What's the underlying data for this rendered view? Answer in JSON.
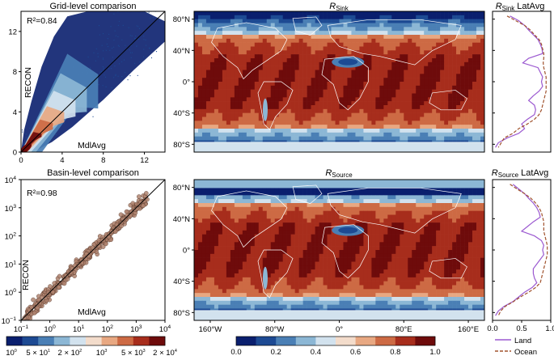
{
  "chart_data": [
    {
      "type": "scatter",
      "title": "Grid-level comparison",
      "xlabel": "MdlAvg",
      "ylabel": "RECON",
      "annotation": "R²=0.84",
      "xlim": [
        0,
        14
      ],
      "ylim": [
        0,
        14
      ],
      "xticks": [
        "0",
        "4",
        "8",
        "12"
      ],
      "yticks": [
        "0",
        "4",
        "8",
        "12"
      ],
      "reference_line": "1:1",
      "points_note": "dense cloud, colored by point density"
    },
    {
      "type": "scatter",
      "title": "Basin-level comparison",
      "xlabel": "MdlAvg",
      "ylabel": "RECON",
      "annotation": "R²=0.98",
      "scale": "log",
      "xlim": [
        0.1,
        10000
      ],
      "ylim": [
        0.1,
        10000
      ],
      "tick_bases": [
        "10",
        "10",
        "10",
        "10",
        "10",
        "10"
      ],
      "tick_exponents": [
        "−1",
        "0",
        "1",
        "2",
        "3",
        "4"
      ],
      "reference_line": "1:1"
    },
    {
      "type": "heatmap",
      "title_main": "R",
      "title_sub": "Sink",
      "x_ticks": [
        "160°W",
        "80°W",
        "0°",
        "80°E",
        "160°E"
      ],
      "y_ticks": [
        "80°N",
        "40°N",
        "0°",
        "40°S",
        "80°S"
      ],
      "colorscale": [
        0,
        1
      ]
    },
    {
      "type": "heatmap",
      "title_main": "R",
      "title_sub": "Source",
      "x_ticks": [
        "160°W",
        "80°W",
        "0°",
        "80°E",
        "160°E"
      ],
      "y_ticks": [
        "80°N",
        "40°N",
        "0°",
        "40°S",
        "80°S"
      ],
      "colorscale": [
        0,
        1
      ]
    },
    {
      "type": "line",
      "title_main": "R",
      "title_sub": "Sink",
      "title_tail": " LatAvg",
      "xlim": [
        0,
        1
      ],
      "ylim": [
        -90,
        90
      ],
      "series": [
        {
          "name": "Land",
          "color": "#9b59d0",
          "lat": [
            84,
            78,
            72,
            66,
            60,
            54,
            48,
            42,
            36,
            30,
            24,
            18,
            12,
            6,
            0,
            -6,
            -12,
            -18,
            -24,
            -30,
            -36,
            -42,
            -48,
            -54,
            -60,
            -66,
            -72,
            -78,
            -84
          ],
          "values": [
            0.3,
            0.45,
            0.55,
            0.62,
            0.7,
            0.78,
            0.82,
            0.85,
            0.86,
            0.62,
            0.52,
            0.78,
            0.82,
            0.86,
            0.84,
            0.86,
            0.8,
            0.7,
            0.62,
            0.72,
            0.74,
            0.72,
            0.6,
            0.5,
            0.55,
            0.45,
            0.25,
            0.1,
            0.05
          ]
        },
        {
          "name": "Ocean",
          "color": "#a0522d",
          "lat": [
            84,
            78,
            72,
            66,
            60,
            54,
            48,
            42,
            36,
            30,
            24,
            18,
            12,
            6,
            0,
            -6,
            -12,
            -18,
            -24,
            -30,
            -36,
            -42,
            -48,
            -54,
            -60,
            -66,
            -72,
            -78,
            -84
          ],
          "values": [
            0.25,
            0.4,
            0.55,
            0.65,
            0.72,
            0.8,
            0.84,
            0.86,
            0.88,
            0.88,
            0.87,
            0.88,
            0.9,
            0.92,
            0.92,
            0.92,
            0.92,
            0.9,
            0.88,
            0.86,
            0.84,
            0.8,
            0.72,
            0.6,
            0.45,
            0.35,
            0.2,
            0.15,
            0.1
          ]
        }
      ]
    },
    {
      "type": "line",
      "title_main": "R",
      "title_sub": "Source",
      "title_tail": " LatAvg",
      "xlim": [
        0,
        1
      ],
      "ylim": [
        -90,
        90
      ],
      "xticks": [
        "0.0",
        "0.5",
        "1.0"
      ],
      "series": [
        {
          "name": "Land",
          "color": "#9b59d0",
          "lat": [
            84,
            78,
            72,
            66,
            60,
            54,
            48,
            42,
            36,
            30,
            24,
            18,
            12,
            6,
            0,
            -6,
            -12,
            -18,
            -24,
            -30,
            -36,
            -42,
            -48,
            -54,
            -60,
            -66,
            -72,
            -78,
            -84
          ],
          "values": [
            0.35,
            0.45,
            0.55,
            0.62,
            0.7,
            0.76,
            0.8,
            0.82,
            0.7,
            0.6,
            0.5,
            0.72,
            0.84,
            0.88,
            0.86,
            0.88,
            0.82,
            0.76,
            0.7,
            0.7,
            0.72,
            0.76,
            0.68,
            0.55,
            0.45,
            0.35,
            0.2,
            0.1,
            0.05
          ]
        },
        {
          "name": "Ocean",
          "color": "#a0522d",
          "lat": [
            84,
            78,
            72,
            66,
            60,
            54,
            48,
            42,
            36,
            30,
            24,
            18,
            12,
            6,
            0,
            -6,
            -12,
            -18,
            -24,
            -30,
            -36,
            -42,
            -48,
            -54,
            -60,
            -66,
            -72,
            -78,
            -84
          ],
          "values": [
            0.3,
            0.42,
            0.55,
            0.66,
            0.74,
            0.8,
            0.84,
            0.86,
            0.88,
            0.88,
            0.88,
            0.9,
            0.92,
            0.94,
            0.94,
            0.94,
            0.92,
            0.9,
            0.88,
            0.86,
            0.84,
            0.82,
            0.74,
            0.62,
            0.48,
            0.36,
            0.22,
            0.14,
            0.1
          ]
        }
      ]
    }
  ],
  "legend": {
    "land": "Land",
    "ocean": "Ocean"
  },
  "density_colorbar": {
    "colors": [
      "#0a1f6e",
      "#1d4a93",
      "#4a7fb5",
      "#8cb7d5",
      "#d2e2ee",
      "#f3dccb",
      "#e8a882",
      "#cd6a44",
      "#a72d1c",
      "#6e0b0b"
    ],
    "tick_bases": [
      "10",
      "10",
      "10",
      "10",
      "10",
      "10"
    ],
    "tick_coefs": [
      "",
      "5 × ",
      "2 × ",
      "",
      "5 × ",
      "2 × "
    ],
    "tick_exponents": [
      "0",
      "1",
      "2",
      "3",
      "3",
      "4"
    ]
  },
  "r_colorbar": {
    "colors": [
      "#0a1f6e",
      "#1d4a93",
      "#4a7fb5",
      "#8cb7d5",
      "#d2e2ee",
      "#f3dccb",
      "#e8a882",
      "#cd6a44",
      "#a72d1c",
      "#6e0b0b"
    ],
    "ticks": [
      "0.0",
      "0.2",
      "0.4",
      "0.6",
      "0.8",
      "1.0"
    ]
  }
}
